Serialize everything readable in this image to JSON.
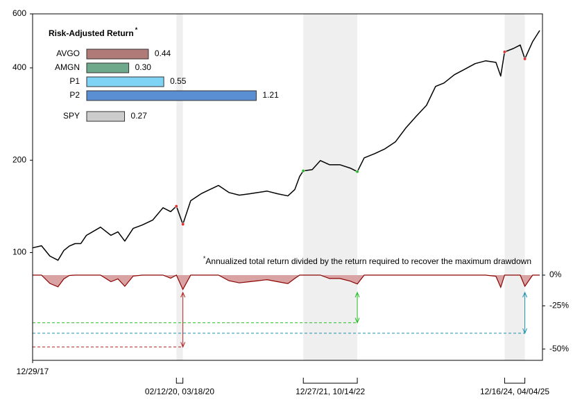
{
  "chart_data": [
    {
      "type": "line",
      "x": [
        "2017-12-29",
        "2018-02-15",
        "2018-04-01",
        "2018-05-15",
        "2018-06-15",
        "2018-07-15",
        "2018-08-15",
        "2018-09-15",
        "2018-10-15",
        "2018-12-30",
        "2019-02-24",
        "2019-04-03",
        "2019-05-10",
        "2019-06-24",
        "2019-08-12",
        "2019-10-07",
        "2019-12-02",
        "2020-01-12",
        "2020-02-12",
        "2020-03-18",
        "2020-04-29",
        "2020-06-24",
        "2020-08-01",
        "2020-09-26",
        "2020-11-21",
        "2021-01-16",
        "2021-03-13",
        "2021-04-27",
        "2021-06-15",
        "2021-08-10",
        "2021-10-05",
        "2021-11-11",
        "2021-12-07",
        "2021-12-27",
        "2022-02-13",
        "2022-03-29",
        "2022-05-17",
        "2022-07-12",
        "2022-09-06",
        "2022-10-14",
        "2022-11-20",
        "2023-01-15",
        "2023-03-12",
        "2023-05-07",
        "2023-07-02",
        "2023-08-27",
        "2023-10-22",
        "2023-12-10",
        "2024-01-24",
        "2024-03-20",
        "2024-05-15",
        "2024-07-10",
        "2024-09-04",
        "2024-10-30",
        "2024-11-25",
        "2024-12-16",
        "2025-02-01",
        "2025-03-10",
        "2025-04-04",
        "2025-05-16",
        "2025-06-23"
      ],
      "xlim": [
        "2017-12-29",
        "2025-07-08"
      ],
      "xticks": [
        {
          "value": "2017-12-29",
          "label": "12/29/17"
        }
      ],
      "y_scale": "log",
      "ylim": [
        84,
        600
      ],
      "yticks": [
        100,
        200,
        400,
        600
      ],
      "y2_scale": "log",
      "y2lim": [
        -55,
        0
      ],
      "y2ticks": [
        {
          "value": 0,
          "label": "0%"
        },
        {
          "value": -25,
          "label": "-25%"
        },
        {
          "value": -50,
          "label": "-50%"
        }
      ],
      "series": [
        {
          "color": "#000000",
          "values": [
            103.6,
            105.3,
            97.4,
            94.4,
            101.5,
            105,
            107,
            107,
            113.8,
            121,
            113.8,
            116.8,
            109,
            119.9,
            123,
            127.6,
            140,
            136,
            141.6,
            123.7,
            147.6,
            155.5,
            159.5,
            165.5,
            157,
            153.9,
            155.5,
            157,
            158.6,
            155.5,
            153,
            160.4,
            177,
            184.6,
            186.5,
            199.5,
            193.4,
            193.4,
            188.5,
            183.6,
            203.6,
            210,
            217.8,
            229.5,
            254.6,
            278,
            302,
            348,
            357,
            380,
            396,
            413,
            421.6,
            417,
            376,
            451,
            462.6,
            475,
            428,
            487,
            529.5
          ]
        },
        {
          "type": "area",
          "axis": "y2",
          "color": "#8b0000",
          "fill": "#d9a3a3",
          "values": [
            0,
            0,
            -7.5,
            -10.4,
            -3.6,
            -0.3,
            0,
            0,
            0,
            0,
            -6,
            -3.5,
            -9.9,
            -0.9,
            0,
            0,
            0,
            -2.9,
            0,
            -12.6,
            0,
            0,
            0,
            0,
            -5.1,
            -7,
            -6,
            -5.1,
            -4.2,
            -6,
            -7.6,
            -3.1,
            0,
            0,
            0,
            0,
            -3.1,
            -3.1,
            -5.5,
            -8,
            0,
            0,
            0,
            0,
            0,
            0,
            0,
            0,
            0,
            0,
            0,
            0,
            0,
            -1.1,
            -10.8,
            0,
            0,
            0,
            -9.9,
            0,
            0
          ]
        }
      ],
      "periods": [
        {
          "start": "2020-02-12",
          "end": "2020-03-18",
          "label": "02/12/20, 03/18/20",
          "color": "#b22222",
          "marker_color": "#e03030",
          "drawdown": -49
        },
        {
          "start": "2021-12-27",
          "end": "2022-10-14",
          "label": "12/27/21, 10/14/22",
          "color": "#22bb22",
          "marker_color": "#22bb22",
          "drawdown": -36
        },
        {
          "start": "2024-12-16",
          "end": "2025-04-04",
          "label": "12/16/24, 04/04/25",
          "color": "#1f8fb0",
          "marker_color": "#e03030",
          "drawdown": -42
        }
      ]
    },
    {
      "type": "bar",
      "title": "Risk-Adjusted Return",
      "title_marker": "*",
      "categories": [
        "AVGO",
        "AMGN",
        "P1",
        "P2",
        "SPY"
      ],
      "values": [
        0.44,
        0.3,
        0.55,
        1.21,
        0.27
      ],
      "value_labels": [
        "0.44",
        "0.30",
        "0.55",
        "1.21",
        "0.27"
      ],
      "colors": [
        "#b07a78",
        "#6fa98c",
        "#7fd3f5",
        "#5b8fd3",
        "#cccccc"
      ],
      "footnote_marker": "*",
      "footnote": "Annualized total return divided by the return required to recover the maximum drawdown"
    }
  ]
}
